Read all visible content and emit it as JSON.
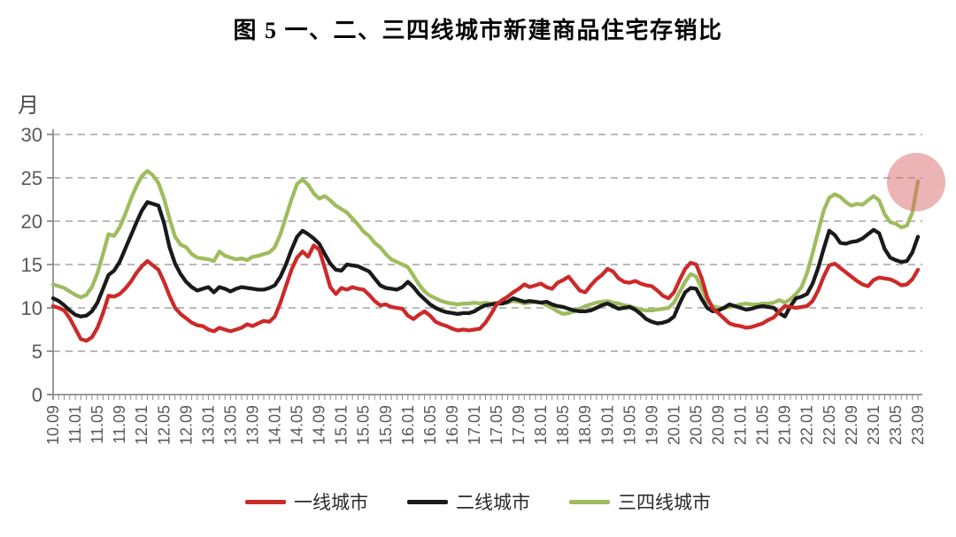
{
  "chart_data": {
    "type": "line",
    "title": "图 5  一、二、三四线城市新建商品住宅存销比",
    "ylabel": "月",
    "ylim": [
      0,
      30
    ],
    "y_ticks": [
      0,
      5,
      10,
      15,
      20,
      25,
      30
    ],
    "grid": true,
    "legend_position": "bottom",
    "x_start": "10.09",
    "x_end": "23.09",
    "x_interval": "monthly",
    "x_tick_labels": [
      "10.09",
      "11.01",
      "11.05",
      "11.09",
      "12.01",
      "12.05",
      "12.09",
      "13.01",
      "13.05",
      "13.09",
      "14.01",
      "14.05",
      "14.09",
      "15.01",
      "15.05",
      "15.09",
      "16.01",
      "16.05",
      "16.09",
      "17.01",
      "17.05",
      "17.09",
      "18.01",
      "18.05",
      "18.09",
      "19.01",
      "19.05",
      "19.09",
      "20.01",
      "20.05",
      "20.09",
      "21.01",
      "21.05",
      "21.09",
      "22.01",
      "22.05",
      "22.09",
      "23.01",
      "23.05",
      "23.09"
    ],
    "x_ticks_every_n_months": 4,
    "series": [
      {
        "name": "一线城市",
        "color": "#CC2A29",
        "values": [
          10.2,
          10.0,
          9.7,
          8.8,
          7.6,
          6.4,
          6.2,
          6.6,
          7.7,
          9.4,
          11.4,
          11.3,
          11.6,
          12.2,
          13.0,
          14.0,
          14.8,
          15.4,
          14.9,
          14.4,
          13.0,
          11.4,
          10.0,
          9.3,
          8.8,
          8.3,
          8.0,
          7.9,
          7.5,
          7.3,
          7.7,
          7.5,
          7.3,
          7.5,
          7.7,
          8.1,
          7.9,
          8.2,
          8.5,
          8.4,
          9.0,
          10.6,
          12.5,
          14.4,
          15.8,
          16.5,
          15.9,
          17.2,
          16.7,
          14.6,
          12.4,
          11.6,
          12.3,
          12.1,
          12.4,
          12.2,
          12.1,
          11.5,
          10.8,
          10.3,
          10.4,
          10.1,
          10.0,
          9.9,
          9.1,
          8.7,
          9.2,
          9.6,
          9.1,
          8.4,
          8.1,
          7.9,
          7.6,
          7.4,
          7.5,
          7.4,
          7.5,
          7.6,
          8.3,
          9.3,
          10.4,
          10.9,
          11.3,
          11.8,
          12.2,
          12.7,
          12.4,
          12.6,
          12.8,
          12.4,
          12.2,
          12.9,
          13.2,
          13.6,
          12.8,
          12.0,
          11.8,
          12.6,
          13.3,
          13.8,
          14.5,
          14.2,
          13.4,
          13.0,
          12.9,
          13.1,
          12.8,
          12.6,
          12.5,
          12.0,
          11.4,
          11.1,
          11.8,
          13.2,
          14.5,
          15.2,
          15.0,
          13.4,
          11.2,
          9.9,
          9.4,
          8.8,
          8.2,
          8.0,
          7.9,
          7.7,
          7.8,
          8.0,
          8.2,
          8.6,
          8.9,
          9.6,
          10.2,
          10.1,
          10.0,
          10.1,
          10.2,
          10.8,
          12.0,
          13.6,
          14.9,
          15.1,
          14.6,
          14.1,
          13.6,
          13.1,
          12.7,
          12.5,
          13.2,
          13.5,
          13.4,
          13.3,
          13.0,
          12.6,
          12.7,
          13.3,
          14.4
        ]
      },
      {
        "name": "二线城市",
        "color": "#1A1A1A",
        "values": [
          11.1,
          10.8,
          10.3,
          9.7,
          9.2,
          9.0,
          9.1,
          9.6,
          10.6,
          12.2,
          13.8,
          14.3,
          15.3,
          16.8,
          18.3,
          19.8,
          21.2,
          22.2,
          22.0,
          21.8,
          19.8,
          17.0,
          15.1,
          13.9,
          13.0,
          12.4,
          12.0,
          12.2,
          12.4,
          11.8,
          12.4,
          12.2,
          11.9,
          12.2,
          12.4,
          12.3,
          12.2,
          12.1,
          12.1,
          12.3,
          12.6,
          13.6,
          15.0,
          16.7,
          18.2,
          18.9,
          18.5,
          18.0,
          17.4,
          16.2,
          15.1,
          14.4,
          14.3,
          15.0,
          14.9,
          14.8,
          14.5,
          14.2,
          13.4,
          12.6,
          12.3,
          12.2,
          12.1,
          12.4,
          13.0,
          12.4,
          11.6,
          11.0,
          10.4,
          10.0,
          9.7,
          9.5,
          9.4,
          9.3,
          9.4,
          9.4,
          9.6,
          10.0,
          10.3,
          10.4,
          10.5,
          10.5,
          10.7,
          11.1,
          10.9,
          10.7,
          10.8,
          10.7,
          10.6,
          10.7,
          10.4,
          10.2,
          10.1,
          9.9,
          9.7,
          9.6,
          9.6,
          9.7,
          10.0,
          10.3,
          10.5,
          10.2,
          9.9,
          10.0,
          10.1,
          9.8,
          9.3,
          8.7,
          8.4,
          8.2,
          8.3,
          8.5,
          9.0,
          10.5,
          11.8,
          12.3,
          12.2,
          11.0,
          10.0,
          9.6,
          9.7,
          10.0,
          10.4,
          10.2,
          10.0,
          9.8,
          9.9,
          10.1,
          10.2,
          10.1,
          10.0,
          9.4,
          9.0,
          10.2,
          11.1,
          11.3,
          11.6,
          12.8,
          14.6,
          16.8,
          18.9,
          18.4,
          17.5,
          17.4,
          17.6,
          17.7,
          18.0,
          18.5,
          19.0,
          18.6,
          16.8,
          15.8,
          15.5,
          15.3,
          15.4,
          16.4,
          18.2
        ]
      },
      {
        "name": "三四线城市",
        "color": "#9FBC5E",
        "values": [
          12.7,
          12.5,
          12.3,
          11.9,
          11.5,
          11.2,
          11.5,
          12.4,
          14.0,
          16.2,
          18.5,
          18.3,
          19.3,
          20.8,
          22.5,
          24.0,
          25.2,
          25.8,
          25.3,
          24.4,
          22.6,
          20.3,
          18.2,
          17.3,
          17.0,
          16.2,
          15.8,
          15.7,
          15.6,
          15.4,
          16.5,
          16.0,
          15.8,
          15.6,
          15.7,
          15.5,
          15.9,
          16.0,
          16.2,
          16.4,
          17.0,
          18.5,
          20.5,
          22.5,
          24.3,
          24.8,
          24.2,
          23.2,
          22.6,
          22.9,
          22.4,
          21.8,
          21.4,
          21.0,
          20.3,
          19.6,
          18.8,
          18.3,
          17.5,
          17.0,
          16.2,
          15.6,
          15.3,
          15.0,
          14.7,
          13.7,
          12.7,
          11.9,
          11.4,
          11.1,
          10.8,
          10.6,
          10.5,
          10.4,
          10.5,
          10.5,
          10.6,
          10.5,
          10.6,
          10.5,
          10.6,
          10.5,
          10.6,
          10.8,
          10.7,
          10.5,
          10.6,
          10.7,
          10.6,
          10.3,
          10.0,
          9.6,
          9.3,
          9.4,
          9.6,
          9.9,
          10.2,
          10.4,
          10.6,
          10.7,
          10.8,
          10.6,
          10.5,
          10.3,
          10.2,
          10.0,
          9.8,
          9.7,
          9.7,
          9.8,
          9.9,
          10.0,
          10.6,
          11.8,
          13.0,
          13.9,
          13.6,
          12.2,
          10.8,
          10.2,
          10.0,
          10.0,
          10.1,
          10.2,
          10.4,
          10.5,
          10.4,
          10.4,
          10.5,
          10.5,
          10.6,
          10.9,
          10.6,
          11.0,
          11.6,
          12.4,
          14.0,
          16.3,
          18.8,
          21.2,
          22.7,
          23.1,
          22.8,
          22.2,
          21.8,
          22.0,
          21.9,
          22.4,
          22.9,
          22.4,
          20.8,
          19.9,
          19.7,
          19.3,
          19.5,
          21.0,
          24.6
        ]
      }
    ],
    "annotation": {
      "type": "highlight_circle",
      "month": "23.09",
      "series": "三四线城市",
      "color": "#D96A6A",
      "opacity": 0.5,
      "radius": 33
    },
    "axis_color": "#8C8C8C",
    "grid_color": "#A3A3A3",
    "tick_label_color": "#595959"
  }
}
